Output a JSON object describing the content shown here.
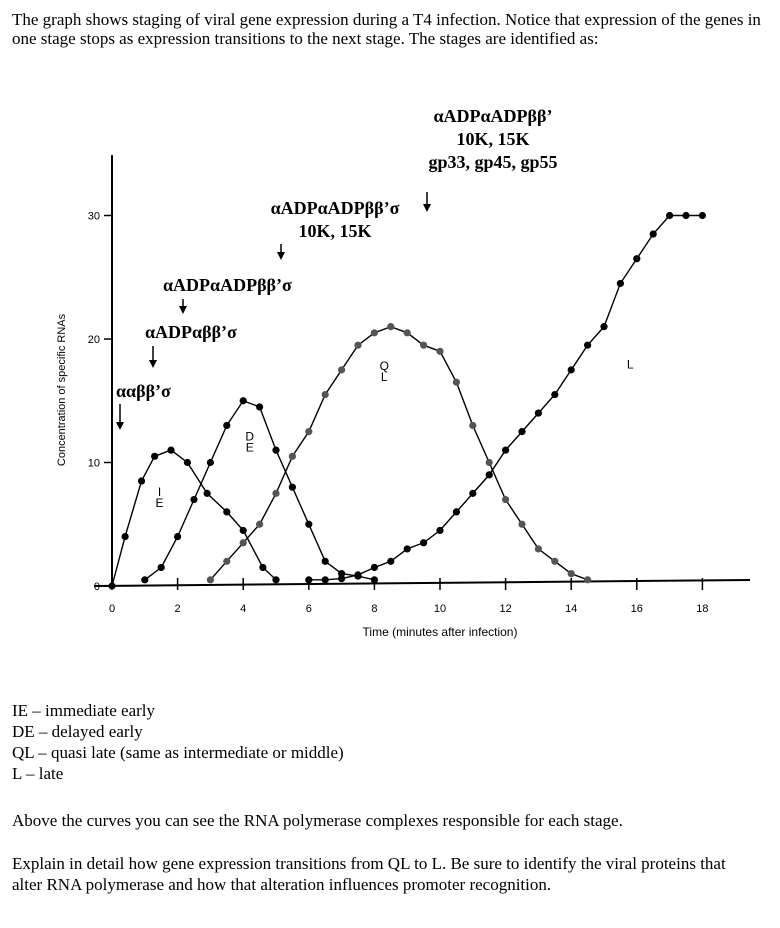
{
  "intro_text": "The graph shows staging of viral gene expression during a T4 infection.  Notice that expression of the genes in one stage stops as expression transitions to the next stage.  The stages are identified as:",
  "polymerase_labels": [
    {
      "lines": [
        "ααββ’σ"
      ]
    },
    {
      "lines": [
        "αADPαββ’σ"
      ]
    },
    {
      "lines": [
        "αADPαADPββ’σ"
      ]
    },
    {
      "lines": [
        "αADPαADPββ’σ",
        "10K, 15K"
      ]
    },
    {
      "lines": [
        "αADPαADPββ’",
        "10K, 15K",
        "gp33, gp45, gp55"
      ]
    }
  ],
  "chart_data": {
    "type": "line",
    "title": "",
    "xlabel": "Time (minutes after infection)",
    "ylabel": "Concentration of specific RNAs",
    "xlim": [
      0,
      19
    ],
    "ylim": [
      0,
      35
    ],
    "x_ticks": [
      "0",
      "2",
      "4",
      "6",
      "8",
      "10",
      "12",
      "14",
      "16",
      "18"
    ],
    "y_ticks": [
      "0",
      "10",
      "20",
      "30"
    ],
    "grid": false,
    "series": [
      {
        "name": "IE",
        "label_lines": [
          "I",
          "E"
        ],
        "color": "#000000",
        "x": [
          0,
          0.4,
          0.9,
          1.3,
          1.8,
          2.3,
          2.9,
          3.5,
          4.0,
          4.6,
          5.0
        ],
        "y": [
          0,
          4,
          8.5,
          10.5,
          11,
          10,
          7.5,
          6,
          4.5,
          1.5,
          0.5
        ]
      },
      {
        "name": "DE",
        "label_lines": [
          "D",
          "E"
        ],
        "color": "#000000",
        "x": [
          1.0,
          1.5,
          2.0,
          2.5,
          3.0,
          3.5,
          4.0,
          4.5,
          5.0,
          5.5,
          6.0,
          6.5,
          7.0,
          7.5,
          8.0
        ],
        "y": [
          0.5,
          1.5,
          4,
          7,
          10,
          13,
          15,
          14.5,
          11,
          8,
          5,
          2,
          1,
          0.8,
          0.5
        ]
      },
      {
        "name": "QL",
        "label_lines": [
          "Q",
          "L"
        ],
        "color": "#555555",
        "x": [
          3.0,
          3.5,
          4.0,
          4.5,
          5.0,
          5.5,
          6.0,
          6.5,
          7.0,
          7.5,
          8.0,
          8.5,
          9.0,
          9.5,
          10.0,
          10.5,
          11.0,
          11.5,
          12.0,
          12.5,
          13.0,
          13.5,
          14.0,
          14.5
        ],
        "y": [
          0.5,
          2,
          3.5,
          5,
          7.5,
          10.5,
          12.5,
          15.5,
          17.5,
          19.5,
          20.5,
          21,
          20.5,
          19.5,
          19,
          16.5,
          13,
          10,
          7,
          5,
          3,
          2,
          1,
          0.5
        ]
      },
      {
        "name": "L",
        "label_lines": [
          "L"
        ],
        "color": "#000000",
        "x": [
          6.0,
          6.5,
          7.0,
          7.5,
          8.0,
          8.5,
          9.0,
          9.5,
          10.0,
          10.5,
          11.0,
          11.5,
          12.0,
          12.5,
          13.0,
          13.5,
          14.0,
          14.5,
          15.0,
          15.5,
          16.0,
          16.5,
          17.0,
          17.5,
          18.0
        ],
        "y": [
          0.5,
          0.5,
          0.6,
          0.9,
          1.5,
          2,
          3,
          3.5,
          4.5,
          6,
          7.5,
          9,
          11,
          12.5,
          14,
          15.5,
          17.5,
          19.5,
          21,
          24.5,
          26.5,
          28.5,
          30,
          30,
          30
        ]
      }
    ]
  },
  "legend": [
    "IE – immediate early",
    "DE – delayed early",
    "QL – quasi late (same as intermediate or middle)",
    "L – late"
  ],
  "paragraph1": "Above the curves you can see the RNA polymerase complexes responsible for each stage.",
  "paragraph2": "Explain in detail how gene expression transitions from QL to L.  Be sure to identify the viral proteins that alter RNA polymerase and how that alteration influences promoter recognition."
}
